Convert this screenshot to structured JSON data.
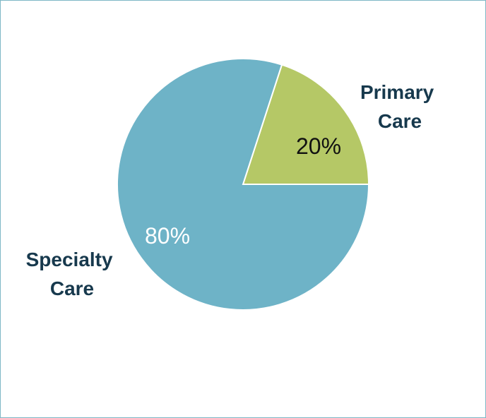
{
  "chart_data": {
    "type": "pie",
    "title": "",
    "slices": [
      {
        "label": "Primary Care",
        "label_lines": [
          "Primary",
          "Care"
        ],
        "value": 20,
        "value_label": "20%",
        "color": "#b5c866",
        "value_label_color": "#111111"
      },
      {
        "label": "Specialty Care",
        "label_lines": [
          "Specialty",
          "Care"
        ],
        "value": 80,
        "value_label": "80%",
        "color": "#6eb3c7",
        "value_label_color": "#ffffff"
      }
    ],
    "start_angle_deg": 0,
    "direction": "counterclockwise",
    "legend": "none",
    "label_color": "#17394d",
    "border_color": "#7fb7c6"
  }
}
